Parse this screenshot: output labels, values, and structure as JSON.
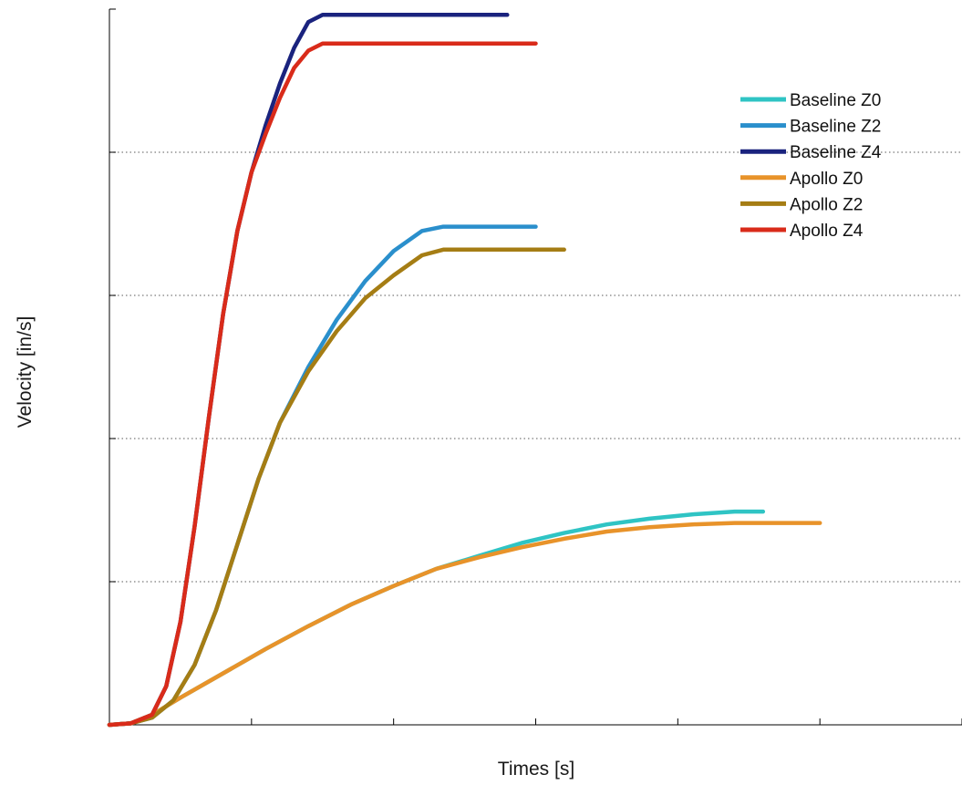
{
  "chart_data": {
    "type": "line",
    "title": "",
    "xlabel": "Times [s]",
    "ylabel": "Velocity [in/s]",
    "xlim": [
      0,
      6
    ],
    "ylim": [
      0,
      5
    ],
    "x_tick_count": 7,
    "y_tick_count": 6,
    "tick_labels_visible": false,
    "grid": "horizontal-dotted",
    "legend_position": "top-right",
    "series": [
      {
        "name": "Baseline Z0",
        "color": "#2fc4c4",
        "points": [
          [
            0,
            0
          ],
          [
            0.15,
            0.01
          ],
          [
            0.3,
            0.07
          ],
          [
            0.5,
            0.19
          ],
          [
            0.8,
            0.36
          ],
          [
            1.1,
            0.53
          ],
          [
            1.4,
            0.69
          ],
          [
            1.7,
            0.84
          ],
          [
            2.0,
            0.97
          ],
          [
            2.3,
            1.09
          ],
          [
            2.6,
            1.18
          ],
          [
            2.9,
            1.27
          ],
          [
            3.2,
            1.34
          ],
          [
            3.5,
            1.4
          ],
          [
            3.8,
            1.44
          ],
          [
            4.1,
            1.47
          ],
          [
            4.4,
            1.49
          ],
          [
            4.6,
            1.49
          ]
        ]
      },
      {
        "name": "Baseline Z2",
        "color": "#2a8fcc",
        "points": [
          [
            0,
            0
          ],
          [
            0.15,
            0.01
          ],
          [
            0.3,
            0.05
          ],
          [
            0.45,
            0.17
          ],
          [
            0.6,
            0.42
          ],
          [
            0.75,
            0.8
          ],
          [
            0.9,
            1.26
          ],
          [
            1.05,
            1.72
          ],
          [
            1.2,
            2.11
          ],
          [
            1.4,
            2.5
          ],
          [
            1.6,
            2.83
          ],
          [
            1.8,
            3.1
          ],
          [
            2.0,
            3.31
          ],
          [
            2.2,
            3.45
          ],
          [
            2.35,
            3.48
          ],
          [
            3.0,
            3.48
          ]
        ]
      },
      {
        "name": "Baseline Z4",
        "color": "#1a237e",
        "points": [
          [
            0,
            0
          ],
          [
            0.15,
            0.01
          ],
          [
            0.3,
            0.07
          ],
          [
            0.4,
            0.27
          ],
          [
            0.5,
            0.72
          ],
          [
            0.6,
            1.39
          ],
          [
            0.7,
            2.15
          ],
          [
            0.8,
            2.87
          ],
          [
            0.9,
            3.45
          ],
          [
            1.0,
            3.86
          ],
          [
            1.1,
            4.19
          ],
          [
            1.2,
            4.48
          ],
          [
            1.3,
            4.73
          ],
          [
            1.4,
            4.91
          ],
          [
            1.5,
            4.96
          ],
          [
            1.8,
            4.96
          ],
          [
            2.8,
            4.96
          ]
        ]
      },
      {
        "name": "Apollo Z0",
        "color": "#e8932a",
        "points": [
          [
            0,
            0
          ],
          [
            0.15,
            0.01
          ],
          [
            0.3,
            0.07
          ],
          [
            0.5,
            0.19
          ],
          [
            0.8,
            0.36
          ],
          [
            1.1,
            0.53
          ],
          [
            1.4,
            0.69
          ],
          [
            1.7,
            0.84
          ],
          [
            2.0,
            0.97
          ],
          [
            2.3,
            1.09
          ],
          [
            2.6,
            1.17
          ],
          [
            2.9,
            1.24
          ],
          [
            3.2,
            1.3
          ],
          [
            3.5,
            1.35
          ],
          [
            3.8,
            1.38
          ],
          [
            4.1,
            1.4
          ],
          [
            4.4,
            1.41
          ],
          [
            5.0,
            1.41
          ]
        ]
      },
      {
        "name": "Apollo Z2",
        "color": "#a57d14",
        "points": [
          [
            0,
            0
          ],
          [
            0.15,
            0.01
          ],
          [
            0.3,
            0.05
          ],
          [
            0.45,
            0.17
          ],
          [
            0.6,
            0.42
          ],
          [
            0.75,
            0.8
          ],
          [
            0.9,
            1.26
          ],
          [
            1.05,
            1.72
          ],
          [
            1.2,
            2.11
          ],
          [
            1.4,
            2.47
          ],
          [
            1.6,
            2.75
          ],
          [
            1.8,
            2.98
          ],
          [
            2.0,
            3.14
          ],
          [
            2.2,
            3.28
          ],
          [
            2.35,
            3.32
          ],
          [
            2.6,
            3.32
          ],
          [
            3.2,
            3.32
          ]
        ]
      },
      {
        "name": "Apollo Z4",
        "color": "#d92b1a",
        "points": [
          [
            0,
            0
          ],
          [
            0.15,
            0.01
          ],
          [
            0.3,
            0.07
          ],
          [
            0.4,
            0.27
          ],
          [
            0.5,
            0.72
          ],
          [
            0.6,
            1.39
          ],
          [
            0.7,
            2.15
          ],
          [
            0.8,
            2.87
          ],
          [
            0.9,
            3.45
          ],
          [
            1.0,
            3.86
          ],
          [
            1.1,
            4.13
          ],
          [
            1.2,
            4.38
          ],
          [
            1.3,
            4.59
          ],
          [
            1.4,
            4.71
          ],
          [
            1.5,
            4.76
          ],
          [
            1.8,
            4.76
          ],
          [
            3.0,
            4.76
          ]
        ]
      }
    ]
  }
}
